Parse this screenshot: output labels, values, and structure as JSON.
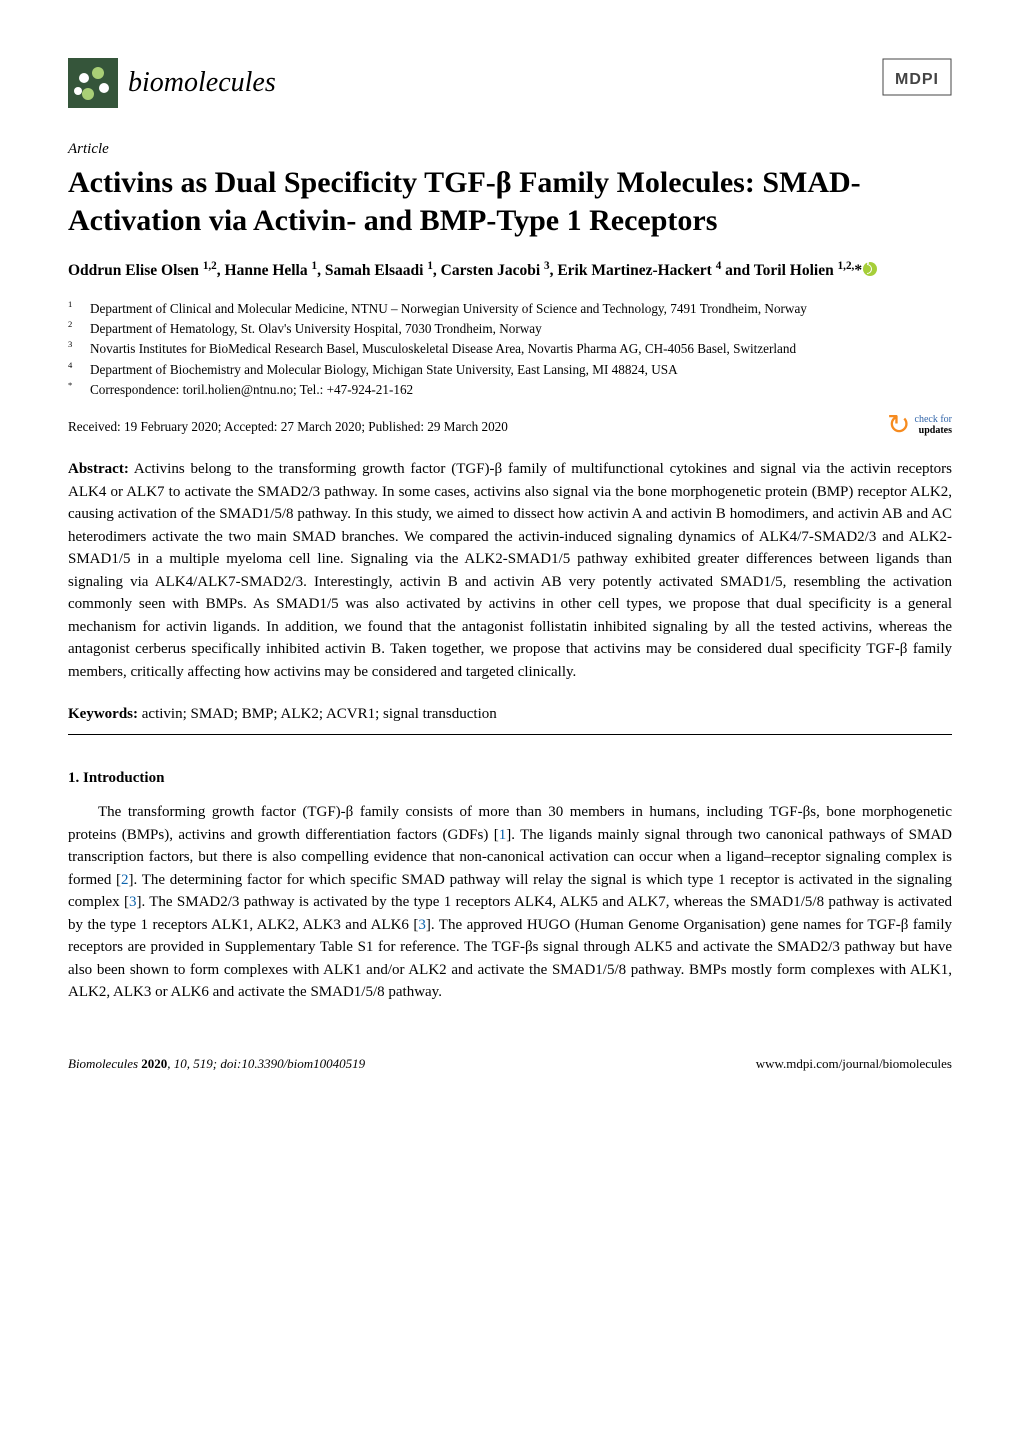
{
  "journal": {
    "name": "biomolecules",
    "logo_colors": {
      "bg": "#35553a",
      "accent": "#a2c66f"
    },
    "mdpi_label": "MDPI",
    "mdpi_colors": {
      "stroke": "#444444"
    }
  },
  "article_label": "Article",
  "title": "Activins as Dual Specificity TGF-β Family Molecules: SMAD-Activation via Activin- and BMP-Type 1 Receptors",
  "authors_line_html": "Oddrun Elise Olsen <sup>1,2</sup>, Hanne Hella <sup>1</sup>, Samah Elsaadi <sup>1</sup>, Carsten Jacobi <sup>3</sup>, Erik Martinez-Hackert <sup>4</sup> and Toril Holien <sup>1,2,</sup>*",
  "affiliations": [
    {
      "num": "1",
      "text": "Department of Clinical and Molecular Medicine, NTNU – Norwegian University of Science and Technology, 7491 Trondheim, Norway"
    },
    {
      "num": "2",
      "text": "Department of Hematology, St. Olav's University Hospital, 7030 Trondheim, Norway"
    },
    {
      "num": "3",
      "text": "Novartis Institutes for BioMedical Research Basel, Musculoskeletal Disease Area, Novartis Pharma AG, CH-4056 Basel, Switzerland"
    },
    {
      "num": "4",
      "text": "Department of Biochemistry and Molecular Biology, Michigan State University, East Lansing, MI 48824, USA"
    },
    {
      "num": "*",
      "text": "Correspondence: toril.holien@ntnu.no; Tel.: +47-924-21-162"
    }
  ],
  "dates_line": "Received: 19 February 2020; Accepted: 27 March 2020; Published: 29 March 2020",
  "updates_badge": {
    "line1": "check for",
    "line2": "updates"
  },
  "abstract": {
    "label": "Abstract:",
    "text": "Activins belong to the transforming growth factor (TGF)-β family of multifunctional cytokines and signal via the activin receptors ALK4 or ALK7 to activate the SMAD2/3 pathway. In some cases, activins also signal via the bone morphogenetic protein (BMP) receptor ALK2, causing activation of the SMAD1/5/8 pathway. In this study, we aimed to dissect how activin A and activin B homodimers, and activin AB and AC heterodimers activate the two main SMAD branches. We compared the activin-induced signaling dynamics of ALK4/7-SMAD2/3 and ALK2-SMAD1/5 in a multiple myeloma cell line. Signaling via the ALK2-SMAD1/5 pathway exhibited greater differences between ligands than signaling via ALK4/ALK7-SMAD2/3. Interestingly, activin B and activin AB very potently activated SMAD1/5, resembling the activation commonly seen with BMPs. As SMAD1/5 was also activated by activins in other cell types, we propose that dual specificity is a general mechanism for activin ligands. In addition, we found that the antagonist follistatin inhibited signaling by all the tested activins, whereas the antagonist cerberus specifically inhibited activin B. Taken together, we propose that activins may be considered dual specificity TGF-β family members, critically affecting how activins may be considered and targeted clinically."
  },
  "keywords": {
    "label": "Keywords:",
    "text": "activin; SMAD; BMP; ALK2; ACVR1; signal transduction"
  },
  "section1": {
    "heading": "1. Introduction",
    "para1_prefix": "The transforming growth factor (TGF)-β family consists of more than 30 members in humans, including TGF-βs, bone morphogenetic proteins (BMPs), activins and growth differentiation factors (GDFs) [",
    "cite1": "1",
    "para1_mid1": "]. The ligands mainly signal through two canonical pathways of SMAD transcription factors, but there is also compelling evidence that non-canonical activation can occur when a ligand–receptor signaling complex is formed [",
    "cite2": "2",
    "para1_mid2": "]. The determining factor for which specific SMAD pathway will relay the signal is which type 1 receptor is activated in the signaling complex [",
    "cite3a": "3",
    "para1_mid3": "]. The SMAD2/3 pathway is activated by the type 1 receptors ALK4, ALK5 and ALK7, whereas the SMAD1/5/8 pathway is activated by the type 1 receptors ALK1, ALK2, ALK3 and ALK6 [",
    "cite3b": "3",
    "para1_mid4": "]. The approved HUGO (Human Genome Organisation) gene names for TGF-β family receptors are provided in Supplementary Table S1 for reference. The TGF-βs signal through ALK5 and activate the SMAD2/3 pathway but have also been shown to form complexes with ALK1 and/or ALK2 and activate the SMAD1/5/8 pathway. BMPs mostly form complexes with ALK1, ALK2, ALK3 or ALK6 and activate the SMAD1/5/8 pathway."
  },
  "footer": {
    "left_italic": "Biomolecules ",
    "left_bold": "2020",
    "left_rest": ", 10, 519; doi:10.3390/biom10040519",
    "right": "www.mdpi.com/journal/biomolecules"
  },
  "colors": {
    "citation_blue": "#0b63ad",
    "orcid_green": "#a6ce39",
    "updates_orange": "#f68b1f",
    "updates_blue": "#3366aa"
  }
}
